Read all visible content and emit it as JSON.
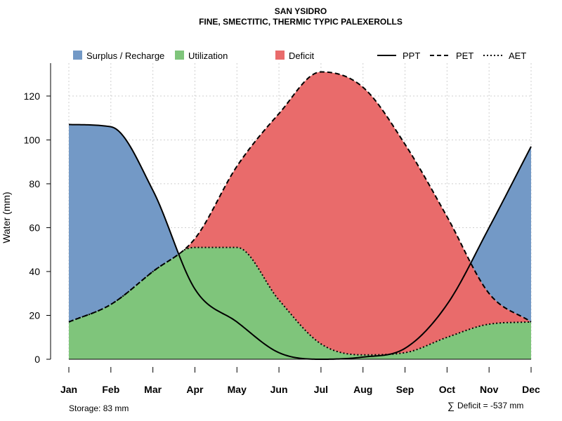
{
  "chart_data": {
    "type": "area",
    "title": "SAN YSIDRO",
    "subtitle": "FINE, SMECTITIC, THERMIC TYPIC PALEXEROLLS",
    "xlabel": "",
    "ylabel": "Water (mm)",
    "categories": [
      "Jan",
      "Feb",
      "Mar",
      "Apr",
      "May",
      "Jun",
      "Jul",
      "Aug",
      "Sep",
      "Oct",
      "Nov",
      "Dec"
    ],
    "ylim": [
      0,
      135
    ],
    "yticks": [
      0,
      20,
      40,
      60,
      80,
      100,
      120
    ],
    "grid": true,
    "legend_position": "top",
    "series": [
      {
        "name": "PPT",
        "line": "solid",
        "values": [
          107,
          106,
          77,
          32,
          17,
          3,
          0,
          1,
          5,
          25,
          60,
          97
        ]
      },
      {
        "name": "PET",
        "line": "dashed",
        "values": [
          17,
          25,
          40,
          55,
          88,
          112,
          131,
          124,
          98,
          65,
          30,
          17
        ]
      },
      {
        "name": "AET",
        "line": "dotted",
        "values": [
          17,
          25,
          40,
          51,
          51,
          27,
          7,
          2,
          3,
          10,
          16,
          17
        ]
      }
    ],
    "fills": [
      {
        "name": "Surplus / Recharge",
        "color": "#7399c6"
      },
      {
        "name": "Utilization",
        "color": "#7fc57b"
      },
      {
        "name": "Deficit",
        "color": "#e96b6b"
      }
    ],
    "legend_lines": [
      "PPT",
      "PET",
      "AET"
    ],
    "annotations": {
      "storage": "Storage: 83 mm",
      "deficit_symbol": "∑",
      "deficit": "Deficit = -537 mm"
    }
  }
}
